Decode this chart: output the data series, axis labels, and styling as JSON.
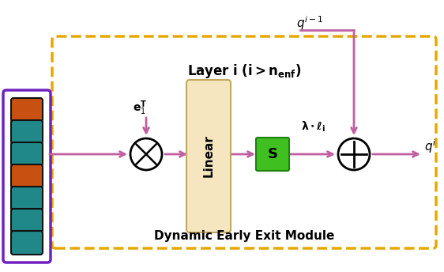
{
  "bg_color": "#ffffff",
  "arrow_color": "#c060a0",
  "dashed_box_color": "#e6a800",
  "purple_rect_color": "#7020c0",
  "orange_rect_color": "#c85010",
  "teal_rect_color": "#208888",
  "linear_box_color": "#f5e6c0",
  "linear_box_edge": "#c0a860",
  "s_box_color": "#40c020",
  "s_box_edge": "#208010",
  "footer_text": "Dynamic Early Exit Module",
  "fig_width": 5.62,
  "fig_height": 3.44,
  "dpi": 100
}
